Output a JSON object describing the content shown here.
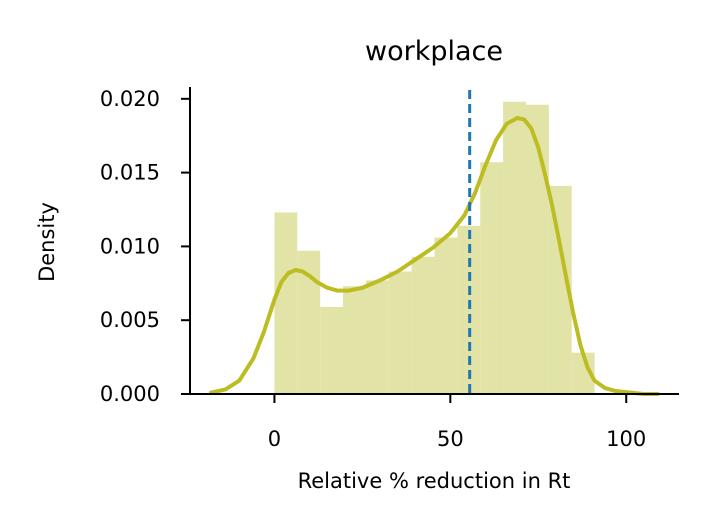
{
  "chart_data": {
    "type": "histogram",
    "title": "workplace",
    "xlabel": "Relative % reduction in Rt",
    "ylabel": "Density",
    "xlim": [
      -24,
      115
    ],
    "ylim": [
      0,
      0.0208
    ],
    "x_ticks": [
      0,
      50,
      100
    ],
    "x_tick_labels": [
      "0",
      "50",
      "100"
    ],
    "y_ticks": [
      0,
      0.005,
      0.01,
      0.015,
      0.02
    ],
    "y_tick_labels": [
      "0.000",
      "0.005",
      "0.010",
      "0.015",
      "0.020"
    ],
    "bins": {
      "edges": [
        0,
        6.5,
        13,
        19.5,
        26,
        32.5,
        39,
        45.5,
        52,
        58.5,
        65,
        71.5,
        78,
        84.5,
        91
      ],
      "densities": [
        0.0123,
        0.0097,
        0.0059,
        0.0073,
        0.0077,
        0.0083,
        0.0093,
        0.0106,
        0.0114,
        0.0157,
        0.0198,
        0.0196,
        0.0141,
        0.0028
      ]
    },
    "kde": {
      "x": [
        -18,
        -14,
        -10,
        -6,
        -3,
        0,
        2,
        4,
        6,
        8,
        10,
        12,
        15,
        18,
        21,
        25,
        30,
        35,
        40,
        45,
        50,
        54,
        57,
        60,
        63,
        66,
        69,
        71,
        73,
        75,
        77,
        79,
        81,
        83,
        85,
        87,
        89,
        91,
        94,
        97,
        101,
        105,
        109
      ],
      "y": [
        0.0001,
        0.0003,
        0.0009,
        0.0024,
        0.0042,
        0.0064,
        0.0076,
        0.0082,
        0.0084,
        0.0083,
        0.008,
        0.0076,
        0.0072,
        0.007,
        0.007,
        0.0072,
        0.0077,
        0.0083,
        0.0091,
        0.0099,
        0.0109,
        0.0121,
        0.0136,
        0.0155,
        0.0172,
        0.0183,
        0.0187,
        0.0186,
        0.018,
        0.0167,
        0.0148,
        0.0127,
        0.0103,
        0.0078,
        0.0054,
        0.0033,
        0.0018,
        0.0009,
        0.0004,
        0.0002,
        0.0001,
        0.0,
        0.0
      ]
    },
    "vline": {
      "x": 55.5
    },
    "colors": {
      "bars": "#e2e3a6",
      "kde": "#bcbd22",
      "vline": "#1f77b4"
    }
  }
}
